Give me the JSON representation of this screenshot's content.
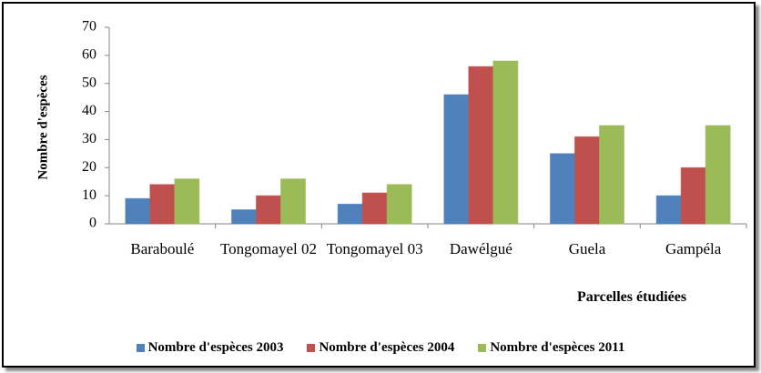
{
  "chart_data": {
    "type": "bar",
    "y_label": "Nombre d'espèces",
    "x_label": "Parcelles étudiées",
    "categories": [
      "Baraboulé",
      "Tongomayel 02",
      "Tongomayel 03",
      "Dawélgué",
      "Guela",
      "Gampéla"
    ],
    "series": [
      {
        "name": "Nombre d'espèces 2003",
        "color": "#4f81bd",
        "values": [
          9,
          5,
          7,
          46,
          25,
          10
        ]
      },
      {
        "name": "Nombre d'espèces 2004",
        "color": "#c0504d",
        "values": [
          14,
          10,
          11,
          56,
          31,
          20
        ]
      },
      {
        "name": "Nombre d'espèces 2011",
        "color": "#9bbb59",
        "values": [
          16,
          16,
          14,
          58,
          35,
          35
        ]
      }
    ],
    "ylim": [
      0,
      70
    ],
    "yticks": [
      0,
      10,
      20,
      30,
      40,
      50,
      60,
      70
    ],
    "grid": false,
    "legend": "bottom"
  }
}
